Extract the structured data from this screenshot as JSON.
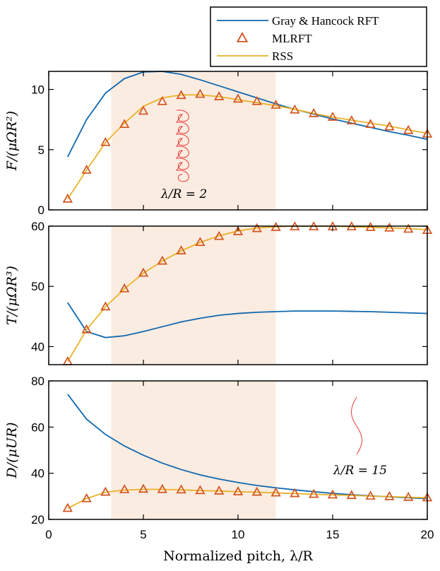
{
  "chart_data": {
    "type": "line",
    "xlabel": "Normalized pitch, λ/R",
    "xlim": [
      0,
      20
    ],
    "xticks": [
      0,
      5,
      10,
      15,
      20
    ],
    "shaded_region": [
      3.3,
      12
    ],
    "colors": {
      "rft": "#0f68b0",
      "mlrft": "#d3541e",
      "rss": "#eab22a",
      "shade": "#fbece1",
      "helix": "#e8383b"
    },
    "legend": {
      "position": "top-right",
      "entries": [
        {
          "name": "Gray & Hancock RFT",
          "style": "line",
          "color": "#0f68b0"
        },
        {
          "name": "MLRFT",
          "style": "triangle",
          "color": "#d3541e"
        },
        {
          "name": "RSS",
          "style": "line",
          "color": "#eab22a"
        }
      ]
    },
    "x": [
      1,
      2,
      3,
      4,
      5,
      6,
      7,
      8,
      9,
      10,
      11,
      12,
      13,
      14,
      15,
      16,
      17,
      18,
      19,
      20
    ],
    "panels": [
      {
        "ylabel": "F/(μΩR²)",
        "ylim": [
          0,
          11.5
        ],
        "yticks": [
          0,
          5,
          10
        ],
        "annotation": "λ/R = 2",
        "series": [
          {
            "name": "Gray & Hancock RFT",
            "values": [
              4.4,
              7.5,
              9.7,
              10.9,
              11.45,
              11.5,
              11.25,
              10.8,
              10.3,
              9.8,
              9.3,
              8.8,
              8.35,
              7.95,
              7.55,
              7.2,
              6.85,
              6.5,
              6.2,
              5.85
            ]
          },
          {
            "name": "MLRFT",
            "values": [
              0.9,
              3.3,
              5.6,
              7.1,
              8.2,
              9.0,
              9.5,
              9.6,
              9.4,
              9.2,
              9.0,
              8.7,
              8.3,
              8.0,
              7.7,
              7.4,
              7.1,
              6.9,
              6.6,
              6.3
            ]
          },
          {
            "name": "RSS",
            "values": [
              0.9,
              3.3,
              5.6,
              7.2,
              8.6,
              9.3,
              9.55,
              9.55,
              9.4,
              9.15,
              8.9,
              8.65,
              8.35,
              8.0,
              7.7,
              7.45,
              7.2,
              6.95,
              6.65,
              6.35
            ]
          }
        ]
      },
      {
        "ylabel": "T/(μΩR³)",
        "ylim": [
          37,
          60
        ],
        "yticks": [
          40,
          50,
          60
        ],
        "series": [
          {
            "name": "Gray & Hancock RFT",
            "values": [
              47.3,
              42.5,
              41.5,
              41.8,
              42.5,
              43.3,
              44.1,
              44.7,
              45.2,
              45.5,
              45.7,
              45.8,
              45.9,
              45.9,
              45.9,
              45.85,
              45.8,
              45.7,
              45.6,
              45.5
            ]
          },
          {
            "name": "MLRFT",
            "values": [
              37.5,
              42.8,
              46.6,
              49.6,
              52.2,
              54.2,
              55.9,
              57.3,
              58.3,
              59.1,
              59.6,
              59.8,
              59.9,
              59.9,
              59.9,
              59.9,
              59.8,
              59.7,
              59.5,
              59.3
            ]
          },
          {
            "name": "RSS",
            "values": [
              37.5,
              42.8,
              46.6,
              49.6,
              52.2,
              54.2,
              55.9,
              57.3,
              58.4,
              59.2,
              59.7,
              59.9,
              60.0,
              60.0,
              60.0,
              59.9,
              59.8,
              59.7,
              59.6,
              59.4
            ]
          }
        ]
      },
      {
        "ylabel": "D/(μUR)",
        "ylim": [
          20,
          80
        ],
        "yticks": [
          20,
          40,
          60,
          80
        ],
        "annotation": "λ/R = 15",
        "series": [
          {
            "name": "Gray & Hancock RFT",
            "values": [
              74.2,
              63.4,
              56.8,
              51.8,
              47.8,
              44.4,
              41.6,
              39.3,
              37.5,
              36.0,
              34.7,
              33.7,
              32.8,
              32.0,
              31.3,
              30.7,
              30.2,
              29.8,
              29.4,
              29.0
            ]
          },
          {
            "name": "MLRFT",
            "values": [
              24.8,
              29.0,
              31.8,
              32.9,
              33.1,
              33.0,
              32.8,
              32.5,
              32.3,
              32.0,
              31.8,
              31.5,
              31.2,
              30.9,
              30.6,
              30.4,
              30.1,
              29.9,
              29.6,
              29.4
            ]
          },
          {
            "name": "RSS",
            "values": [
              24.8,
              29.0,
              31.8,
              32.7,
              33.0,
              33.0,
              32.8,
              32.5,
              32.3,
              32.0,
              31.8,
              31.5,
              31.2,
              30.9,
              30.6,
              30.4,
              30.1,
              29.9,
              29.6,
              29.4
            ]
          }
        ]
      }
    ]
  }
}
